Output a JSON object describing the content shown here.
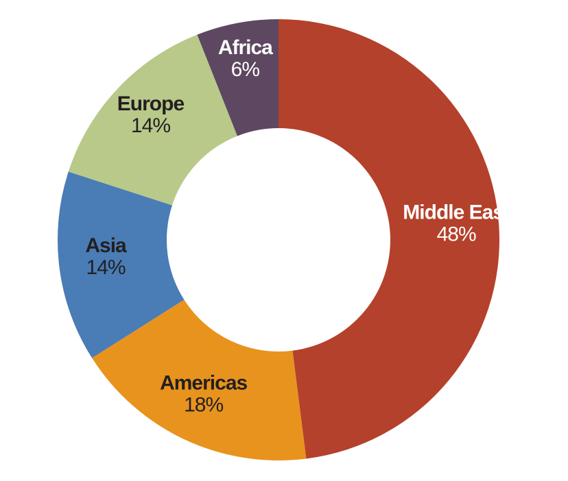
{
  "chart_data": {
    "type": "pie",
    "donut": true,
    "title": "",
    "slices": [
      {
        "label": "Middle East",
        "value": 48,
        "display": "48%",
        "color": "#B4412B",
        "text_color": "#ffffff"
      },
      {
        "label": "Americas",
        "value": 18,
        "display": "18%",
        "color": "#E8931E",
        "text_color": "#231F20"
      },
      {
        "label": "Asia",
        "value": 14,
        "display": "14%",
        "color": "#4A7CB6",
        "text_color": "#231F20"
      },
      {
        "label": "Europe",
        "value": 14,
        "display": "14%",
        "color": "#B8C98A",
        "text_color": "#231F20"
      },
      {
        "label": "Africa",
        "value": 6,
        "display": "6%",
        "color": "#5E4760",
        "text_color": "#ffffff"
      }
    ],
    "start": "12 o'clock",
    "direction": "clockwise",
    "legend": "none"
  }
}
